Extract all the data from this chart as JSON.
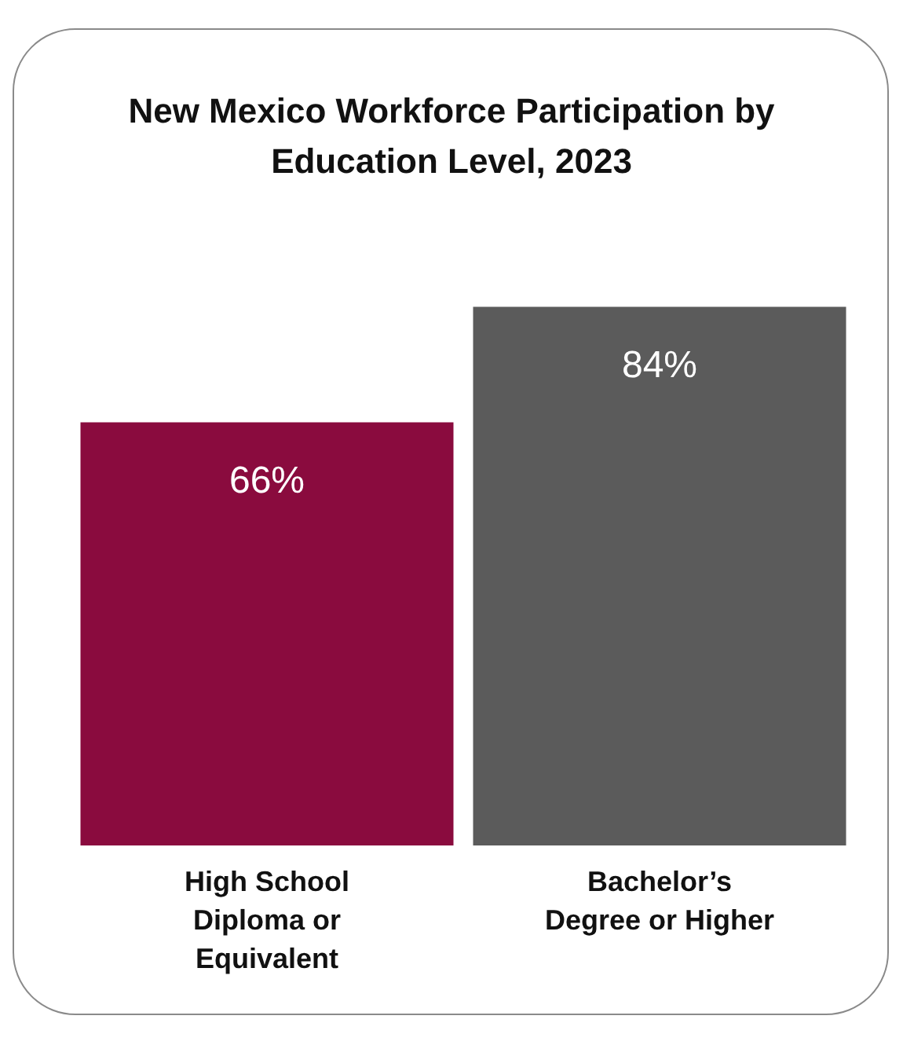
{
  "chart_data": {
    "type": "bar",
    "title": "New Mexico Workforce Participation by Education Level, 2023",
    "categories": [
      "High School Diploma or Equivalent",
      "Bachelor’s Degree or Higher"
    ],
    "values": [
      66,
      84
    ],
    "colors": [
      "#8a0b3e",
      "#5b5b5b"
    ],
    "value_labels": [
      "66%",
      "84%"
    ],
    "grid": false,
    "legend": false
  }
}
